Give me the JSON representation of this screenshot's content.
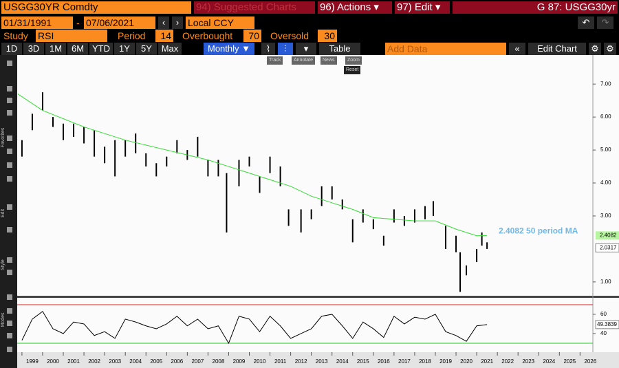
{
  "header": {
    "security": "USGG30YR Comdty",
    "suggested": "94) Suggested Charts",
    "actions": "96) Actions ▾",
    "edit": "97) Edit ▾",
    "page": "G 87: USGG30yr",
    "start_date": "01/31/1991",
    "date_sep": "-",
    "end_date": "07/06/2021",
    "currency": "Local CCY",
    "study_label": "Study",
    "study": "RSI",
    "period_label": "Period",
    "period": 14,
    "overbought_label": "Overbought",
    "overbought": 70,
    "oversold_label": "Oversold",
    "oversold": 30,
    "ranges": [
      "1D",
      "3D",
      "1M",
      "6M",
      "YTD",
      "1Y",
      "5Y",
      "Max"
    ],
    "frequency": "Monthly ▼",
    "table": "Table",
    "add_data": "Add Data",
    "edit_chart": "Edit Chart"
  },
  "chart_tools": [
    "Track",
    "Annotate",
    "News",
    "Zoom",
    "Reset"
  ],
  "side_labels": [
    "Favorites",
    "Edit",
    "Style",
    "Modes"
  ],
  "chart_data": [
    {
      "type": "range-bar",
      "x": [
        1999.0,
        1999.5,
        2000.0,
        2000.5,
        2001.0,
        2001.5,
        2002.0,
        2002.5,
        2003.0,
        2003.5,
        2004.0,
        2004.5,
        2005.0,
        2005.5,
        2006.0,
        2006.5,
        2007.0,
        2007.5,
        2008.0,
        2008.5,
        2008.9,
        2009.5,
        2010.0,
        2010.5,
        2011.0,
        2011.5,
        2011.9,
        2012.5,
        2013.0,
        2013.5,
        2014.0,
        2014.5,
        2015.0,
        2015.5,
        2016.0,
        2016.5,
        2017.0,
        2017.5,
        2018.0,
        2018.5,
        2018.9,
        2019.5,
        2020.0,
        2020.2,
        2020.5,
        2021.0,
        2021.25,
        2021.5
      ],
      "high": [
        5.3,
        6.1,
        6.75,
        6.0,
        5.8,
        5.8,
        5.7,
        5.6,
        5.1,
        5.3,
        5.3,
        5.5,
        4.9,
        4.6,
        4.8,
        5.3,
        5.0,
        5.4,
        4.7,
        4.7,
        4.3,
        4.7,
        4.8,
        4.2,
        4.8,
        4.5,
        3.2,
        3.2,
        3.2,
        3.9,
        3.9,
        3.5,
        2.9,
        3.2,
        2.9,
        2.4,
        3.2,
        3.0,
        3.2,
        3.3,
        3.45,
        2.7,
        2.4,
        1.9,
        1.5,
        2.0,
        2.5,
        2.2
      ],
      "low": [
        4.8,
        5.6,
        6.2,
        5.7,
        5.3,
        5.4,
        5.2,
        4.8,
        4.6,
        4.2,
        4.8,
        4.9,
        4.5,
        4.2,
        4.5,
        4.9,
        4.7,
        4.8,
        4.2,
        4.2,
        2.5,
        3.9,
        4.5,
        3.7,
        4.3,
        3.9,
        2.7,
        2.5,
        2.9,
        3.3,
        3.5,
        3.2,
        2.2,
        2.8,
        2.6,
        2.1,
        2.8,
        2.7,
        2.8,
        2.9,
        3.0,
        2.0,
        1.9,
        0.7,
        1.2,
        1.6,
        2.1,
        2.0
      ],
      "color": "#000000",
      "ma": {
        "x": [
          1998.8,
          2000.0,
          2002.0,
          2004.0,
          2006.0,
          2008.0,
          2009.0,
          2010.0,
          2012.0,
          2013.0,
          2014.0,
          2015.0,
          2016.0,
          2018.0,
          2019.0,
          2020.0,
          2021.0,
          2021.5
        ],
        "values": [
          6.7,
          6.2,
          5.7,
          5.3,
          5.0,
          4.7,
          4.5,
          4.3,
          3.9,
          3.6,
          3.4,
          3.2,
          2.95,
          2.85,
          2.85,
          2.6,
          2.4,
          2.4082
        ],
        "color": "#33dd33"
      },
      "annotation": "2.4082 50 period MA",
      "ma_last": 2.4082,
      "last": 2.0317,
      "xlim": [
        1998.77,
        2026.62
      ],
      "xticks": [
        1999,
        2000,
        2001,
        2002,
        2003,
        2004,
        2005,
        2006,
        2007,
        2008,
        2009,
        2010,
        2011,
        2012,
        2013,
        2014,
        2015,
        2016,
        2017,
        2018,
        2019,
        2020,
        2021,
        2022,
        2023,
        2024,
        2025,
        2026
      ],
      "ylim": [
        0.58,
        7.88
      ],
      "yticks": [
        {
          "value": 1,
          "label": "1.00"
        },
        {
          "value": 3,
          "label": "3.00"
        },
        {
          "value": 4,
          "label": "4.00"
        },
        {
          "value": 5,
          "label": "5.00"
        },
        {
          "value": 6,
          "label": "6.00"
        },
        {
          "value": 7,
          "label": "7.00"
        }
      ]
    },
    {
      "type": "line",
      "x": [
        1999.0,
        1999.5,
        2000.0,
        2000.5,
        2001.0,
        2001.5,
        2002.0,
        2002.5,
        2003.0,
        2003.5,
        2004.0,
        2004.5,
        2005.0,
        2005.5,
        2006.0,
        2006.5,
        2007.0,
        2007.5,
        2008.0,
        2008.5,
        2009.0,
        2009.5,
        2010.0,
        2010.5,
        2011.0,
        2011.5,
        2012.0,
        2012.5,
        2013.0,
        2013.5,
        2014.0,
        2014.5,
        2015.0,
        2015.5,
        2016.0,
        2016.5,
        2017.0,
        2017.5,
        2018.0,
        2018.5,
        2019.0,
        2019.5,
        2020.0,
        2020.5,
        2021.0,
        2021.5
      ],
      "values": [
        33,
        55,
        63,
        45,
        40,
        52,
        50,
        38,
        42,
        35,
        55,
        52,
        48,
        45,
        50,
        58,
        48,
        55,
        45,
        48,
        30,
        58,
        55,
        42,
        58,
        48,
        35,
        40,
        45,
        58,
        60,
        48,
        35,
        52,
        45,
        36,
        58,
        50,
        57,
        55,
        60,
        42,
        38,
        32,
        48,
        49.3839
      ],
      "color": "#000000",
      "last": 49.3839,
      "ylim": [
        20.7,
        77.1
      ],
      "yticks": [
        40,
        60
      ]
    }
  ]
}
